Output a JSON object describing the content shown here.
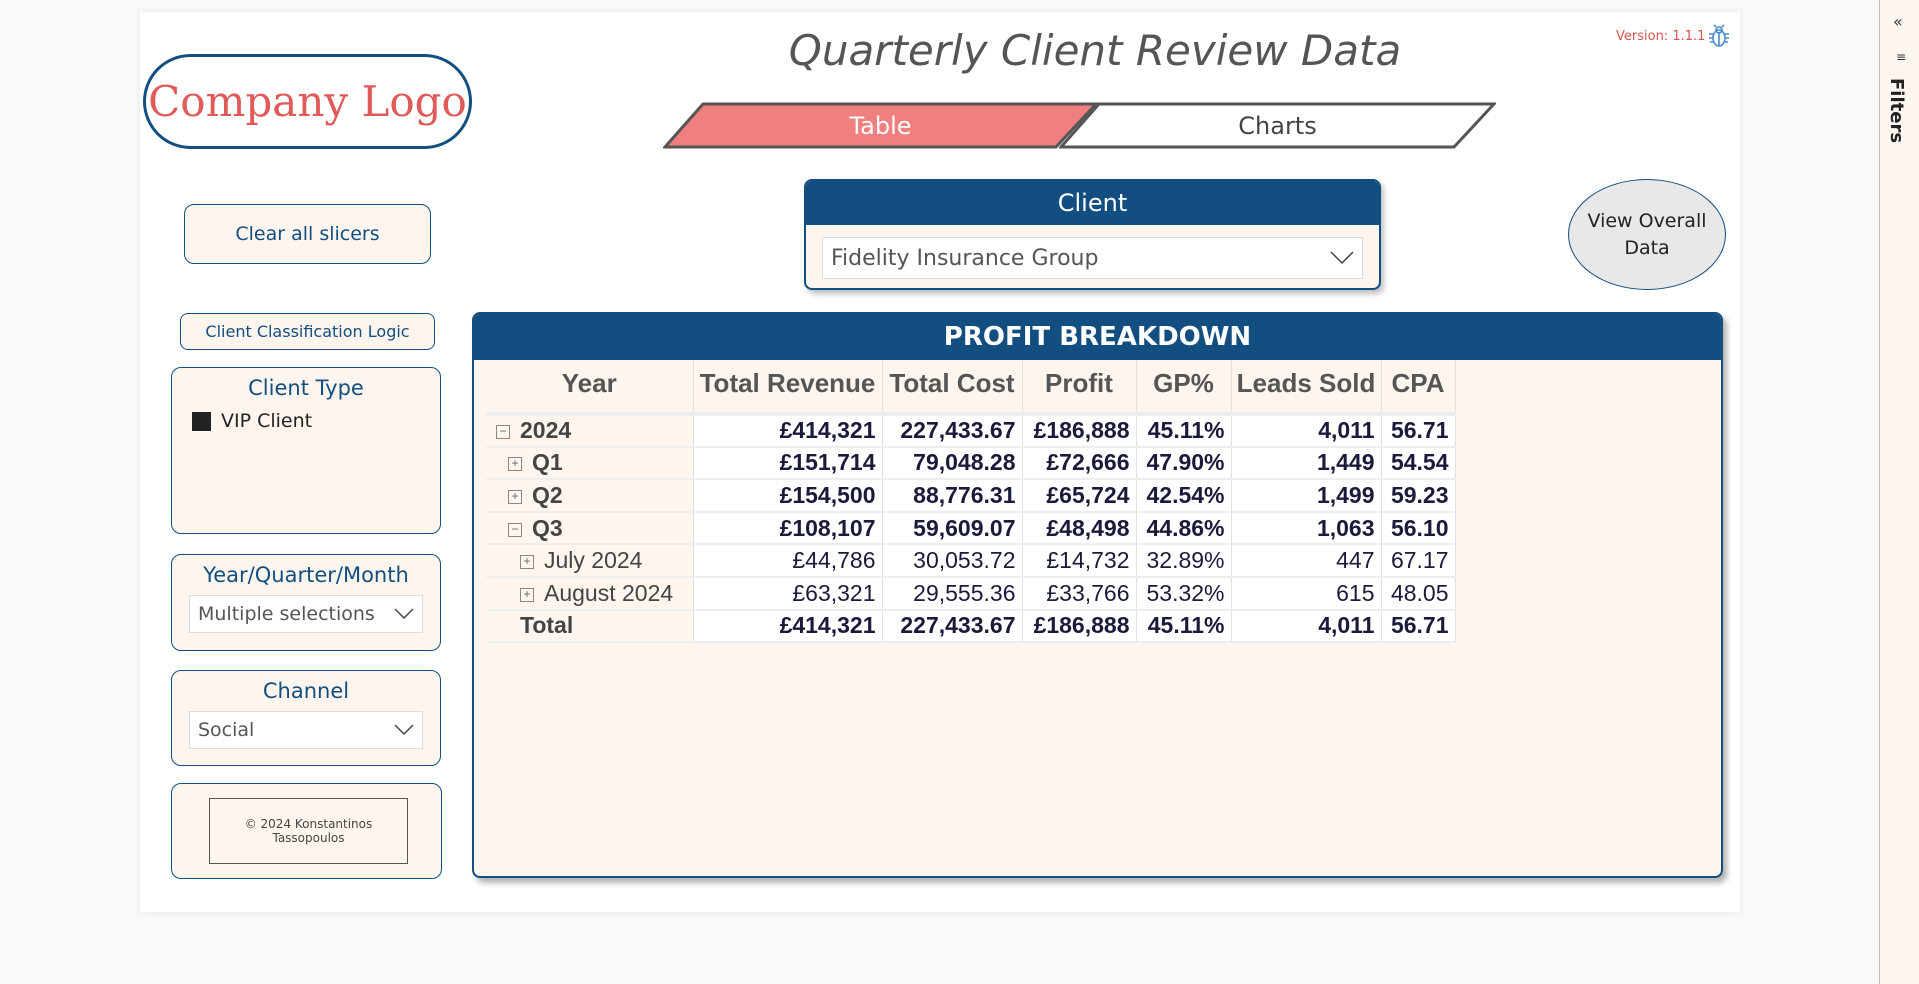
{
  "header": {
    "logo": "Company Logo",
    "title": "Quarterly Client Review Data",
    "version": "Version: 1.1.1"
  },
  "tabs": [
    {
      "label": "Table",
      "active": true
    },
    {
      "label": "Charts",
      "active": false
    }
  ],
  "filters_pane": {
    "label": "Filters"
  },
  "buttons": {
    "clear": "Clear all slicers",
    "classification": "Client Classification Logic",
    "view_overall": "View Overall Data"
  },
  "slicers": {
    "client": {
      "title": "Client",
      "value": "Fidelity Insurance Group"
    },
    "client_type": {
      "title": "Client Type",
      "items": [
        "VIP Client"
      ]
    },
    "year_quarter_month": {
      "title": "Year/Quarter/Month",
      "value": "Multiple selections"
    },
    "channel": {
      "title": "Channel",
      "value": "Social"
    }
  },
  "copyright": "© 2024 Konstantinos Tassopoulos",
  "colors": {
    "brand": "#124e80",
    "tab_active": "#f07f7f",
    "accent_red": "#e05a5a"
  },
  "table": {
    "title": "PROFIT BREAKDOWN",
    "columns": [
      "Year",
      "Total Revenue",
      "Total Cost",
      "Profit",
      "GP%",
      "Leads Sold",
      "CPA"
    ],
    "rows": [
      {
        "label": "2024",
        "level": 0,
        "expander": "minus",
        "bold": true,
        "values": [
          "£414,321",
          "227,433.67",
          "£186,888",
          "45.11%",
          "4,011",
          "56.71"
        ]
      },
      {
        "label": "Q1",
        "level": 1,
        "expander": "plus",
        "bold": true,
        "values": [
          "£151,714",
          "79,048.28",
          "£72,666",
          "47.90%",
          "1,449",
          "54.54"
        ]
      },
      {
        "label": "Q2",
        "level": 1,
        "expander": "plus",
        "bold": true,
        "values": [
          "£154,500",
          "88,776.31",
          "£65,724",
          "42.54%",
          "1,499",
          "59.23"
        ]
      },
      {
        "label": "Q3",
        "level": 1,
        "expander": "minus",
        "bold": true,
        "values": [
          "£108,107",
          "59,609.07",
          "£48,498",
          "44.86%",
          "1,063",
          "56.10"
        ]
      },
      {
        "label": "July 2024",
        "level": 2,
        "expander": "plus",
        "bold": false,
        "values": [
          "£44,786",
          "30,053.72",
          "£14,732",
          "32.89%",
          "447",
          "67.17"
        ]
      },
      {
        "label": "August 2024",
        "level": 2,
        "expander": "plus",
        "bold": false,
        "values": [
          "£63,321",
          "29,555.36",
          "£33,766",
          "53.32%",
          "615",
          "48.05"
        ]
      },
      {
        "label": "Total",
        "level": -1,
        "expander": null,
        "bold": true,
        "values": [
          "£414,321",
          "227,433.67",
          "£186,888",
          "45.11%",
          "4,011",
          "56.71"
        ]
      }
    ]
  }
}
